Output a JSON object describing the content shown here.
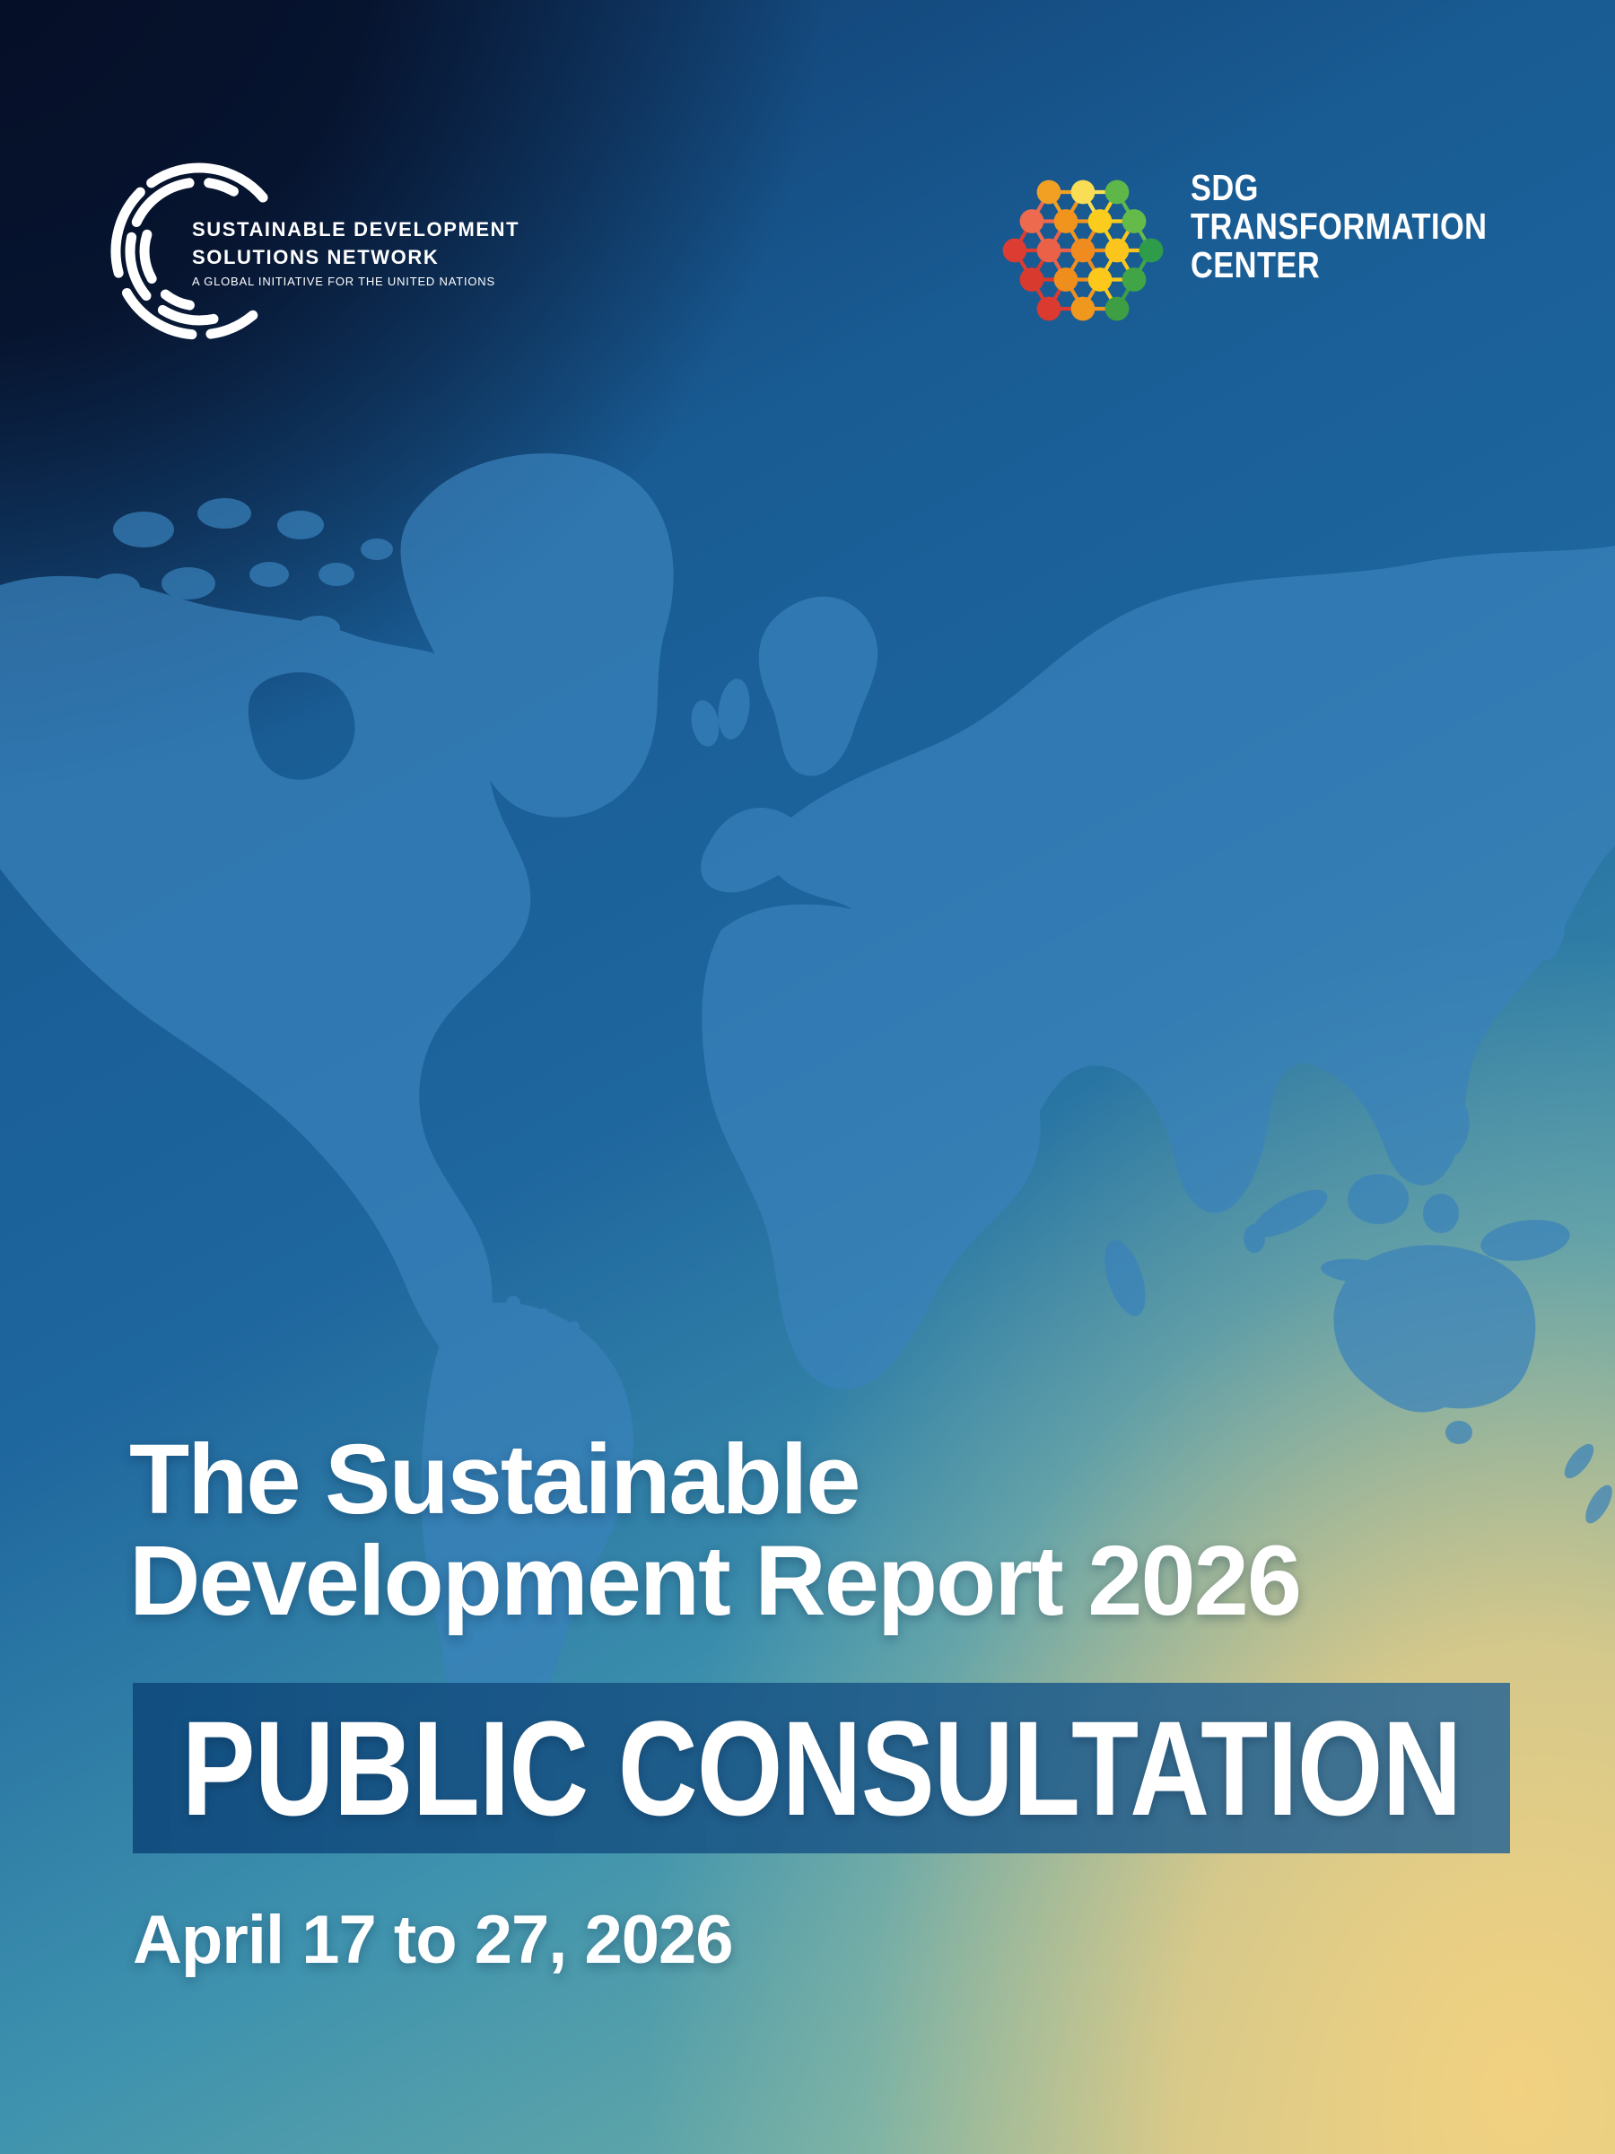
{
  "header": {
    "sdsn_logo": {
      "line1": "SUSTAINABLE DEVELOPMENT",
      "line2": "SOLUTIONS NETWORK",
      "tagline": "A GLOBAL INITIATIVE FOR THE UNITED NATIONS"
    },
    "sdg_logo": {
      "line1": "SDG",
      "line2": "TRANSFORMATION",
      "line3": "CENTER",
      "hex_dot_colors": [
        [
          "#F2A024",
          "#F9DE55",
          "#5FB74A"
        ],
        [
          "#EE6A4F",
          "#F0941E",
          "#FACC1D",
          "#64BB4A"
        ],
        [
          "#DC3C31",
          "#EA6148",
          "#EF8B1F",
          "#FCC51D",
          "#2E9C48"
        ],
        [
          "#D93A2E",
          "#EF8E1D",
          "#FBC81B",
          "#41A547"
        ],
        [
          "#DA3A2F",
          "#F0971E",
          "#3E9E44"
        ]
      ]
    }
  },
  "main": {
    "title_line1": "The Sustainable",
    "title_line2": "Development Report 2026",
    "banner_label": "PUBLIC CONSULTATION",
    "dates": "April 17 to 27, 2026"
  },
  "colors": {
    "background_top_left": "#050E26",
    "background_top_right": "#1A5B95",
    "background_bottom_left": "#3A87AB",
    "background_bottom_right": "#F0D083",
    "map_land": "#3A82BB",
    "banner_bar": "#144E7E",
    "text": "#FFFFFF"
  }
}
